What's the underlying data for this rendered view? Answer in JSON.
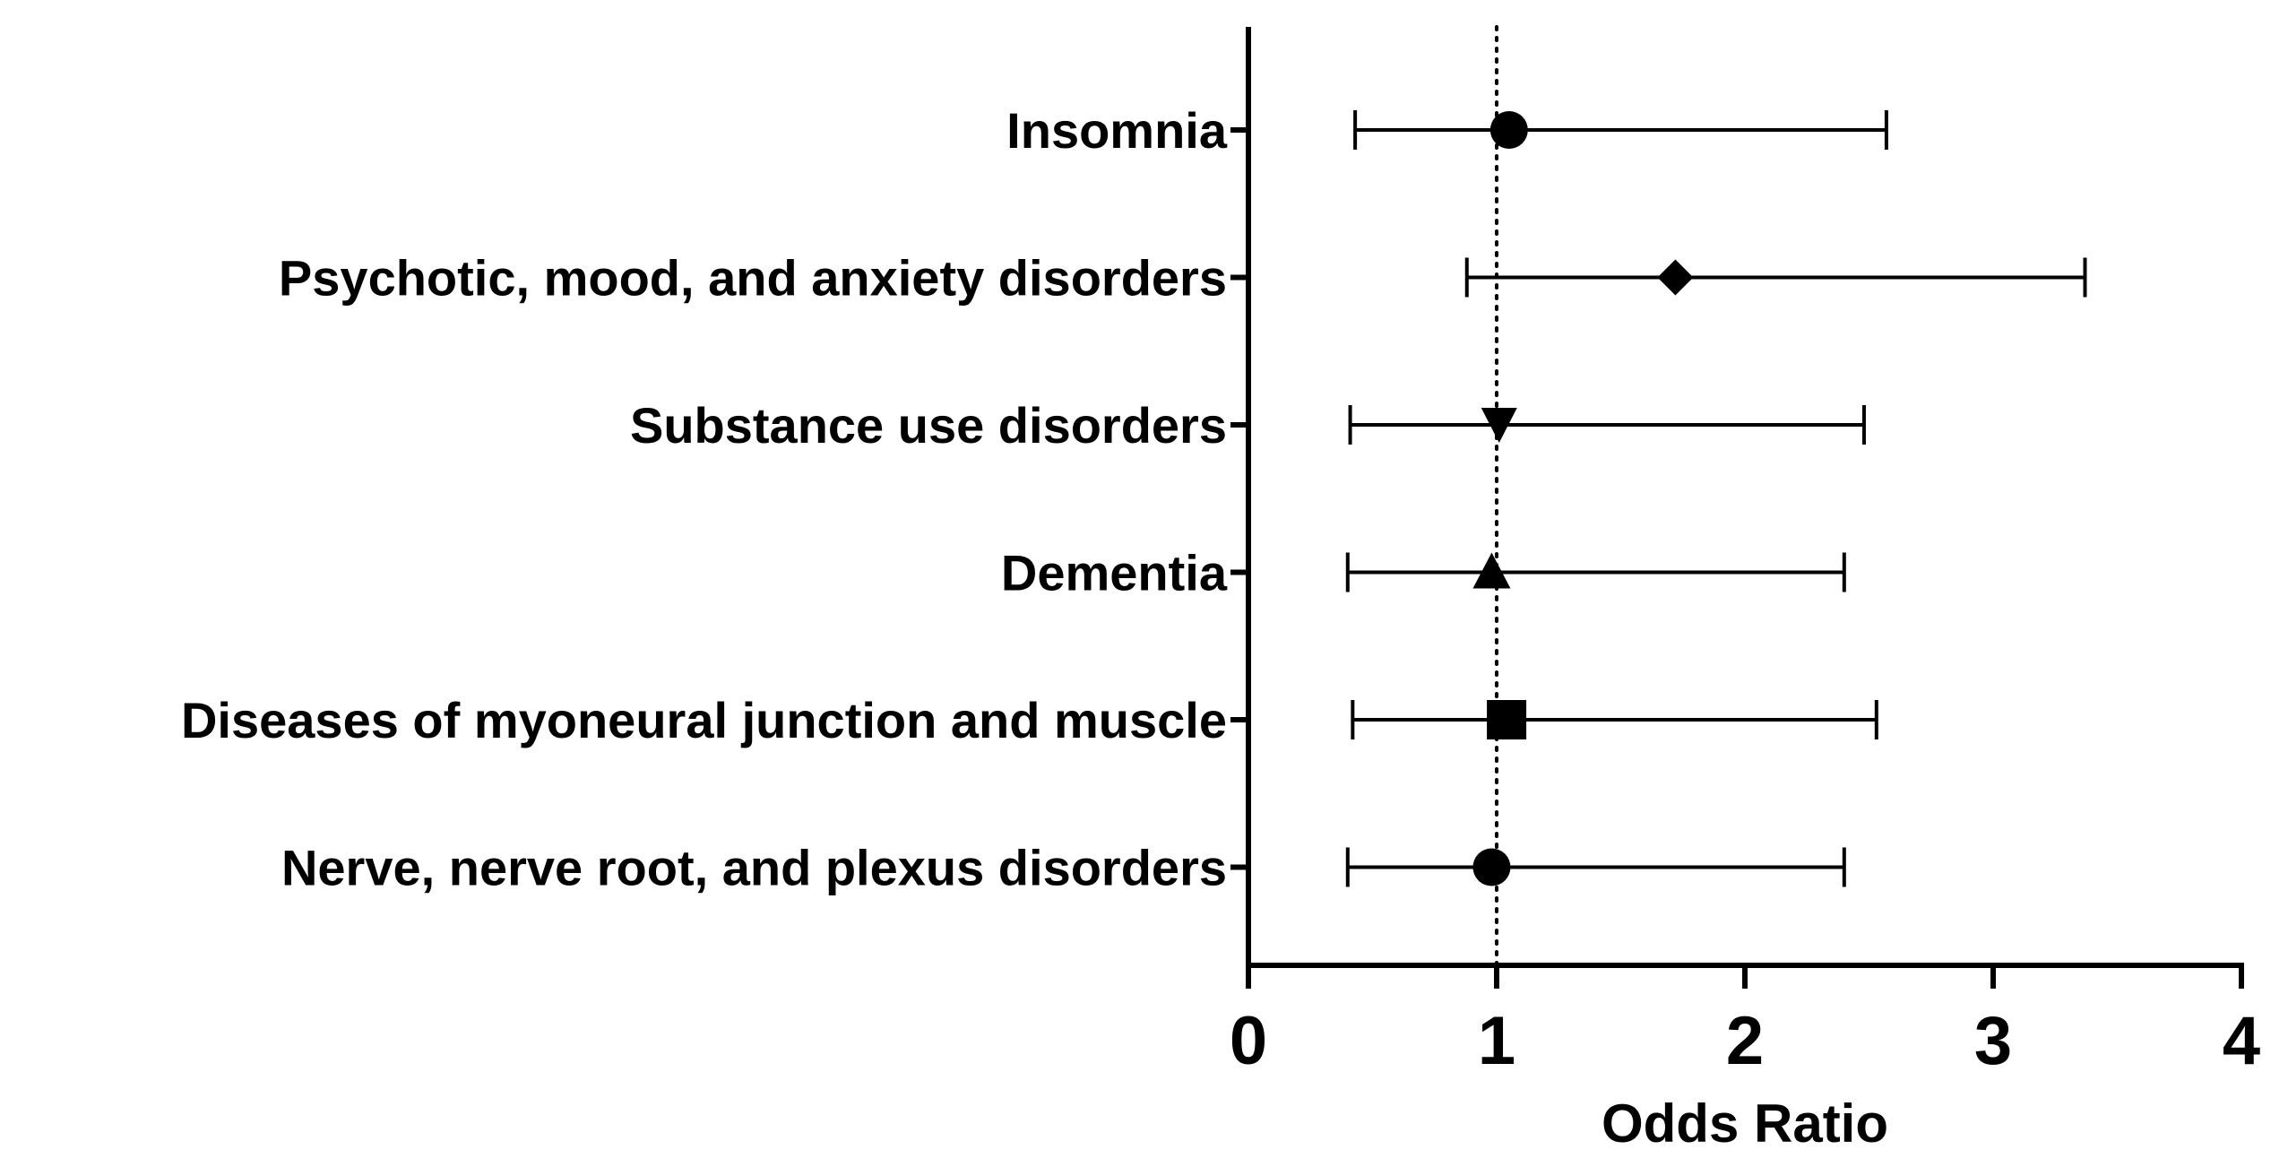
{
  "chart_data": {
    "type": "forest",
    "xlabel": "Odds Ratio",
    "xlim": [
      0,
      4
    ],
    "x_ticks": [
      0,
      1,
      2,
      3,
      4
    ],
    "x_tick_labels": [
      "0",
      "1",
      "2",
      "3",
      "4"
    ],
    "reference_line": 1,
    "reference_line_style": "dotted",
    "marker_color": "#000000",
    "rows": [
      {
        "label": "Insomnia",
        "or": 1.05,
        "ci_low": 0.43,
        "ci_high": 2.57,
        "marker": "circle"
      },
      {
        "label": "Psychotic, mood, and anxiety disorders",
        "or": 1.72,
        "ci_low": 0.88,
        "ci_high": 3.37,
        "marker": "diamond"
      },
      {
        "label": "Substance use disorders",
        "or": 1.01,
        "ci_low": 0.41,
        "ci_high": 2.48,
        "marker": "triangle-down"
      },
      {
        "label": "Dementia",
        "or": 0.98,
        "ci_low": 0.4,
        "ci_high": 2.4,
        "marker": "triangle-up"
      },
      {
        "label": "Diseases of myoneural junction and muscle",
        "or": 1.04,
        "ci_low": 0.42,
        "ci_high": 2.53,
        "marker": "square"
      },
      {
        "label": "Nerve, nerve root, and plexus disorders",
        "or": 0.98,
        "ci_low": 0.4,
        "ci_high": 2.4,
        "marker": "circle"
      }
    ]
  }
}
